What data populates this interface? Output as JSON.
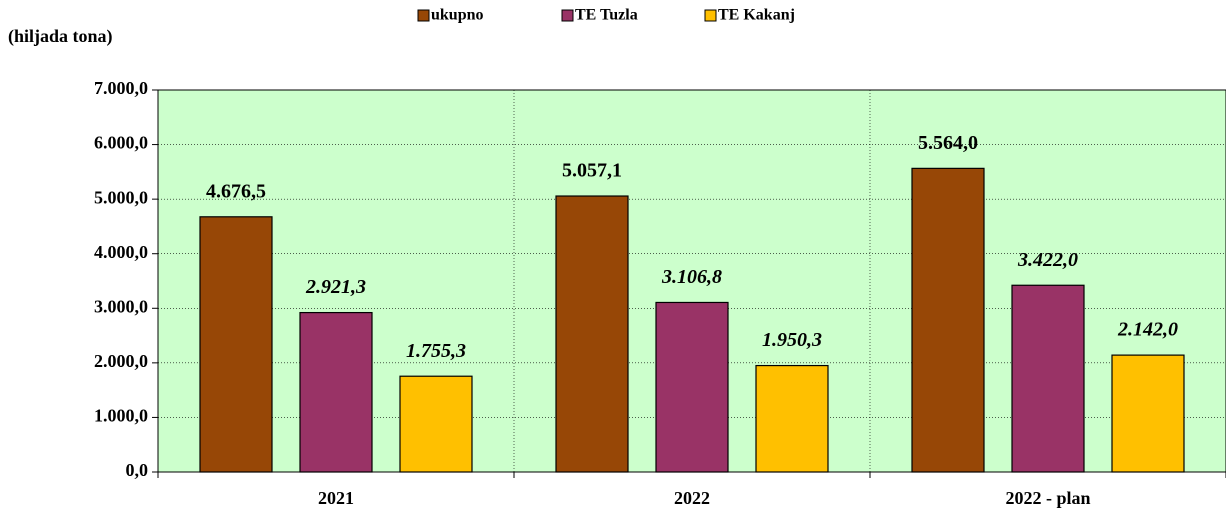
{
  "chart_data": {
    "type": "bar",
    "y_label": "(hiljada tona)",
    "categories": [
      "2021",
      "2022",
      "2022 - plan"
    ],
    "series": [
      {
        "name": "ukupno",
        "color": "#974706",
        "values": [
          4676.5,
          5057.1,
          5564.0
        ],
        "value_labels": [
          "4.676,5",
          "5.057,1",
          "5.564,0"
        ]
      },
      {
        "name": "TE Tuzla",
        "color": "#993366",
        "values": [
          2921.3,
          3106.8,
          3422.0
        ],
        "value_labels": [
          "2.921,3",
          "3.106,8",
          "3.422,0"
        ]
      },
      {
        "name": "TE Kakanj",
        "color": "#FFC000",
        "values": [
          1755.3,
          1950.3,
          2142.0
        ],
        "value_labels": [
          "1.755,3",
          "1.950,3",
          "2.142,0"
        ]
      }
    ],
    "ylim": [
      0,
      7000
    ],
    "yticks": [
      {
        "value": 0,
        "label": "0,0"
      },
      {
        "value": 1000,
        "label": "1.000,0"
      },
      {
        "value": 2000,
        "label": "2.000,0"
      },
      {
        "value": 3000,
        "label": "3.000,0"
      },
      {
        "value": 4000,
        "label": "4.000,0"
      },
      {
        "value": 5000,
        "label": "5.000,0"
      },
      {
        "value": 6000,
        "label": "6.000,0"
      },
      {
        "value": 7000,
        "label": "7.000,0"
      }
    ],
    "grid": true,
    "plot_background": "#CCFFCC",
    "legend": "top"
  }
}
